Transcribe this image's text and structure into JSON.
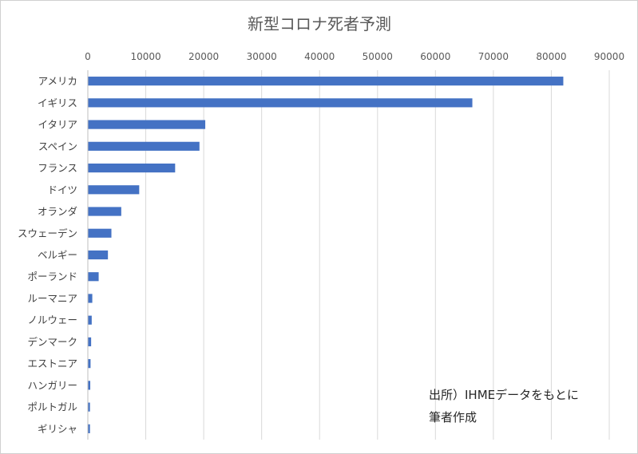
{
  "chart_data": {
    "type": "bar",
    "orientation": "horizontal",
    "title": "新型コロナ死者予測",
    "categories": [
      "アメリカ",
      "イギリス",
      "イタリア",
      "スペイン",
      "フランス",
      "ドイツ",
      "オランダ",
      "スウェーデン",
      "ベルギー",
      "ポーランド",
      "ルーマニア",
      "ノルウェー",
      "デンマーク",
      "エストニア",
      "ハンガリー",
      "ポルトガル",
      "ギリシャ"
    ],
    "values": [
      82000,
      66300,
      20200,
      19200,
      15000,
      8800,
      5700,
      4000,
      3400,
      1800,
      700,
      600,
      500,
      400,
      350,
      300,
      300
    ],
    "xlim": [
      0,
      90000
    ],
    "x_ticks": [
      "0",
      "10000",
      "20000",
      "30000",
      "40000",
      "50000",
      "60000",
      "70000",
      "80000",
      "90000"
    ],
    "x_axis_position": "top",
    "grid": true,
    "legend": "none",
    "bar_color": "#4472c4",
    "annotation": [
      "出所）IHMEデータをもとに",
      "筆者作成"
    ]
  }
}
